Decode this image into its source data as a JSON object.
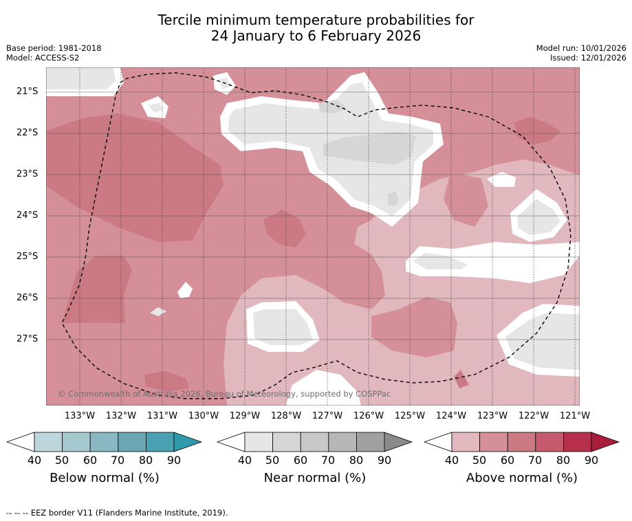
{
  "title_line1": "Tercile minimum temperature probabilities for",
  "title_line2": "24 January to 6 February 2026",
  "base_period": "Base period: 1981-2018",
  "model": "Model: ACCESS-S2",
  "model_run": "Model run: 10/01/2026",
  "issued": "Issued: 12/01/2026",
  "credit": "© Commonwealth of Australia 2026, Bureau of Meteorology, supported by COSPPac",
  "lon_labels": [
    "133°W",
    "132°W",
    "131°W",
    "130°W",
    "129°W",
    "128°W",
    "127°W",
    "126°W",
    "125°W",
    "124°W",
    "123°W",
    "122°W",
    "121°W"
  ],
  "lat_labels": [
    "21°S",
    "22°S",
    "23°S",
    "24°S",
    "25°S",
    "26°S",
    "27°S"
  ],
  "colorbars": [
    {
      "title": "Below normal (%)",
      "ticks": [
        "40",
        "50",
        "60",
        "70",
        "80",
        "90"
      ],
      "colors": [
        "#ffffff",
        "#bdd6dc",
        "#a6c9d0",
        "#89b7c2",
        "#6aa6b4",
        "#4aa1b2",
        "#2e9aac"
      ]
    },
    {
      "title": "Near normal (%)",
      "ticks": [
        "40",
        "50",
        "60",
        "70",
        "80",
        "90"
      ],
      "colors": [
        "#ffffff",
        "#e6e6e6",
        "#d6d6d6",
        "#c8c8c8",
        "#b7b7b7",
        "#a0a0a0",
        "#8a8a8a"
      ]
    },
    {
      "title": "Above normal (%)",
      "ticks": [
        "40",
        "50",
        "60",
        "70",
        "80",
        "90"
      ],
      "colors": [
        "#ffffff",
        "#e0b8be",
        "#d48f98",
        "#cb7a84",
        "#c45a6c",
        "#b7304b",
        "#a81d3a"
      ]
    }
  ],
  "footnote": "--  --  -- EEZ border V11 (Flanders Marine Institute, 2019)."
}
